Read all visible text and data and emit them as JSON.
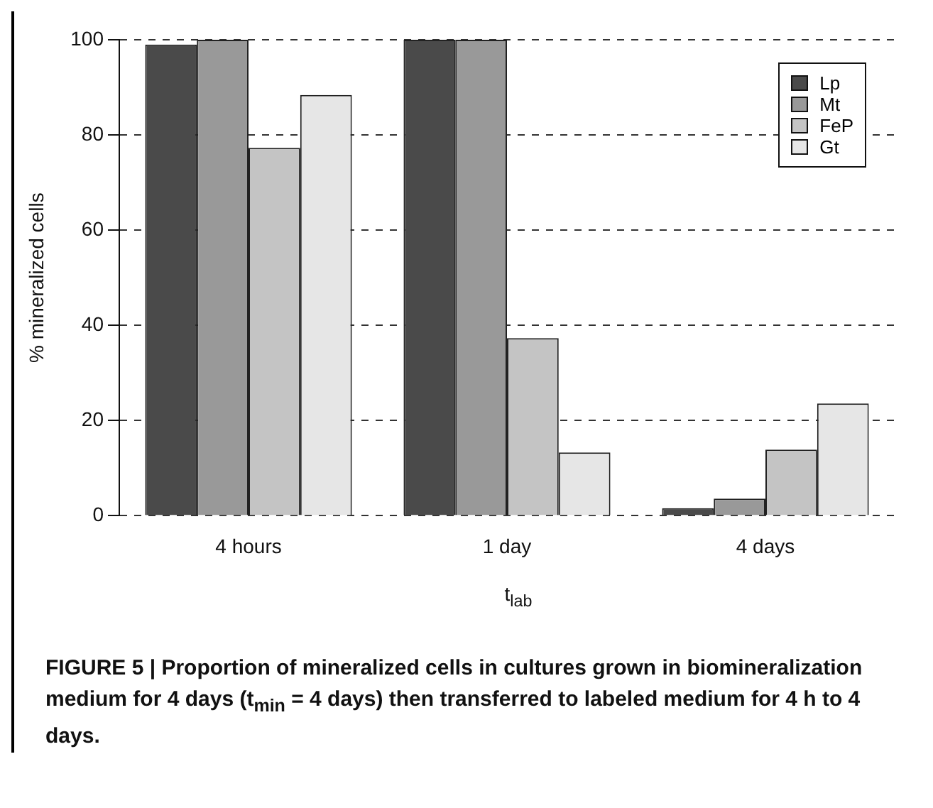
{
  "chart_data": {
    "type": "bar",
    "title": "FIGURE 5 | Proportion of mineralized cells in cultures grown in biomineralization medium for 4 days (t$_{min}$ = 4 days) then transferred to labeled medium for 4 h to 4 days.",
    "xlabel": "t$_{lab}$",
    "ylabel": "% mineralized cells",
    "categories": [
      "4 hours",
      "1 day",
      "4 days"
    ],
    "series": [
      {
        "name": "Lp",
        "color": "#4a4a4a",
        "values": [
          99,
          100,
          1.6
        ]
      },
      {
        "name": "Mt",
        "color": "#999999",
        "values": [
          100,
          100,
          3.6
        ]
      },
      {
        "name": "FeP",
        "color": "#c4c4c4",
        "values": [
          77.3,
          37.3,
          13.9
        ]
      },
      {
        "name": "Gt",
        "color": "#e6e6e6",
        "values": [
          88.4,
          13.3,
          23.6
        ]
      }
    ],
    "ylim": [
      0,
      100
    ],
    "yticks": [
      0,
      20,
      40,
      60,
      80,
      100
    ],
    "grid": "y",
    "legend": "top right"
  }
}
